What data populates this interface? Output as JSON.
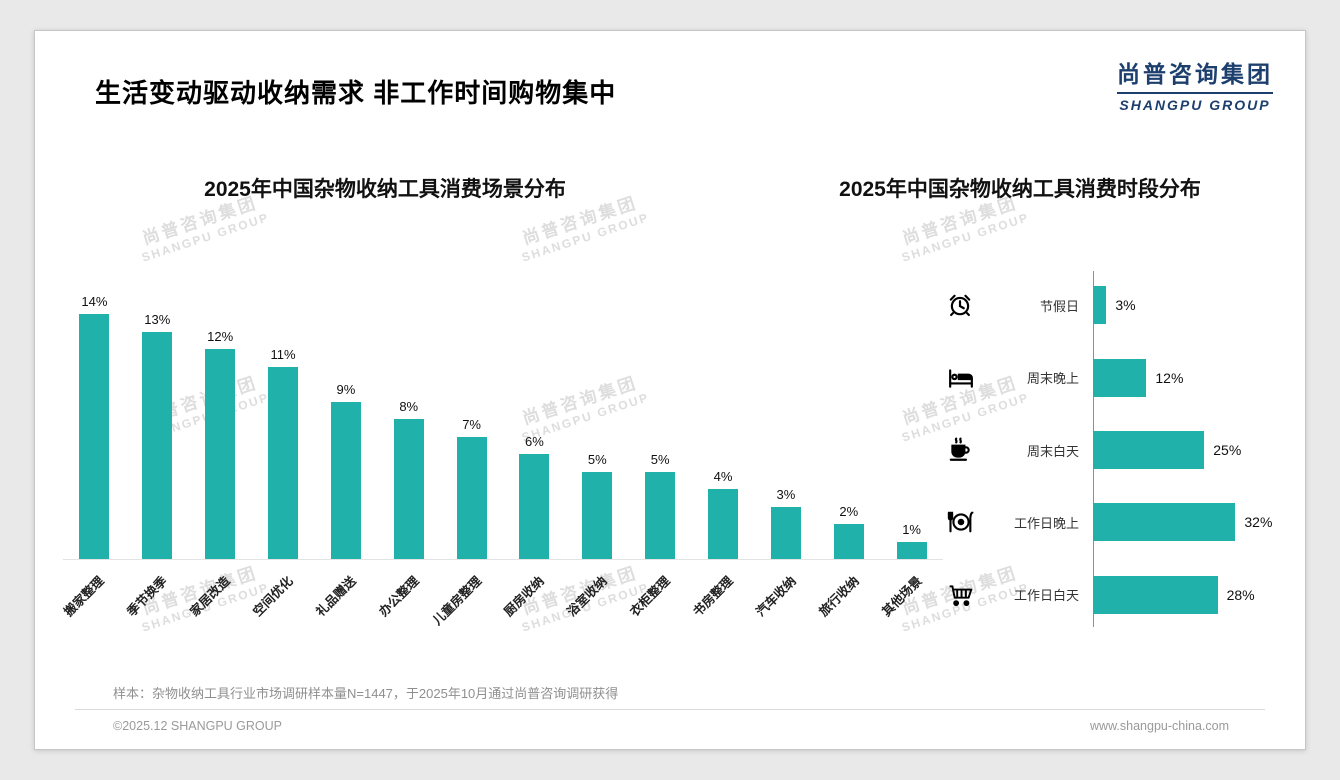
{
  "page": {
    "title": "生活变动驱动收纳需求 非工作时间购物集中",
    "logo": {
      "cn": "尚普咨询集团",
      "en": "SHANGPU GROUP"
    },
    "watermark": {
      "cn": "尚普咨询集团",
      "en": "SHANGPU GROUP"
    },
    "footnote": "样本：杂物收纳工具行业市场调研样本量N=1447，于2025年10月通过尚普咨询调研获得",
    "footer_left": "©2025.12 SHANGPU GROUP",
    "footer_right": "www.shangpu-china.com"
  },
  "colors": {
    "accent": "#20B2AA",
    "logo_navy": "#1d3f6e"
  },
  "chart_data": [
    {
      "type": "bar",
      "orientation": "vertical",
      "title": "2025年中国杂物收纳工具消费场景分布",
      "categories": [
        "搬家整理",
        "季节换季",
        "家居改造",
        "空间优化",
        "礼品赠送",
        "办公整理",
        "儿童房整理",
        "厨房收纳",
        "浴室收纳",
        "衣柜整理",
        "书房整理",
        "汽车收纳",
        "旅行收纳",
        "其他场景"
      ],
      "values": [
        14,
        13,
        12,
        11,
        9,
        8,
        7,
        6,
        5,
        5,
        4,
        3,
        2,
        1
      ],
      "unit": "%",
      "ylim": [
        0,
        14
      ],
      "grid": false,
      "bar_color": "#20B2AA",
      "value_labels": "above bars",
      "category_label_rotation": -45
    },
    {
      "type": "bar",
      "orientation": "horizontal",
      "title": "2025年中国杂物收纳工具消费时段分布",
      "categories": [
        "节假日",
        "周末晚上",
        "周末白天",
        "工作日晚上",
        "工作日白天"
      ],
      "values": [
        3,
        12,
        25,
        32,
        28
      ],
      "icons": [
        "alarm-clock-icon",
        "bed-icon",
        "coffee-icon",
        "dining-icon",
        "shopping-cart-icon"
      ],
      "unit": "%",
      "xlim": [
        0,
        35
      ],
      "grid": false,
      "bar_color": "#20B2AA",
      "value_labels": "right of bars"
    }
  ]
}
